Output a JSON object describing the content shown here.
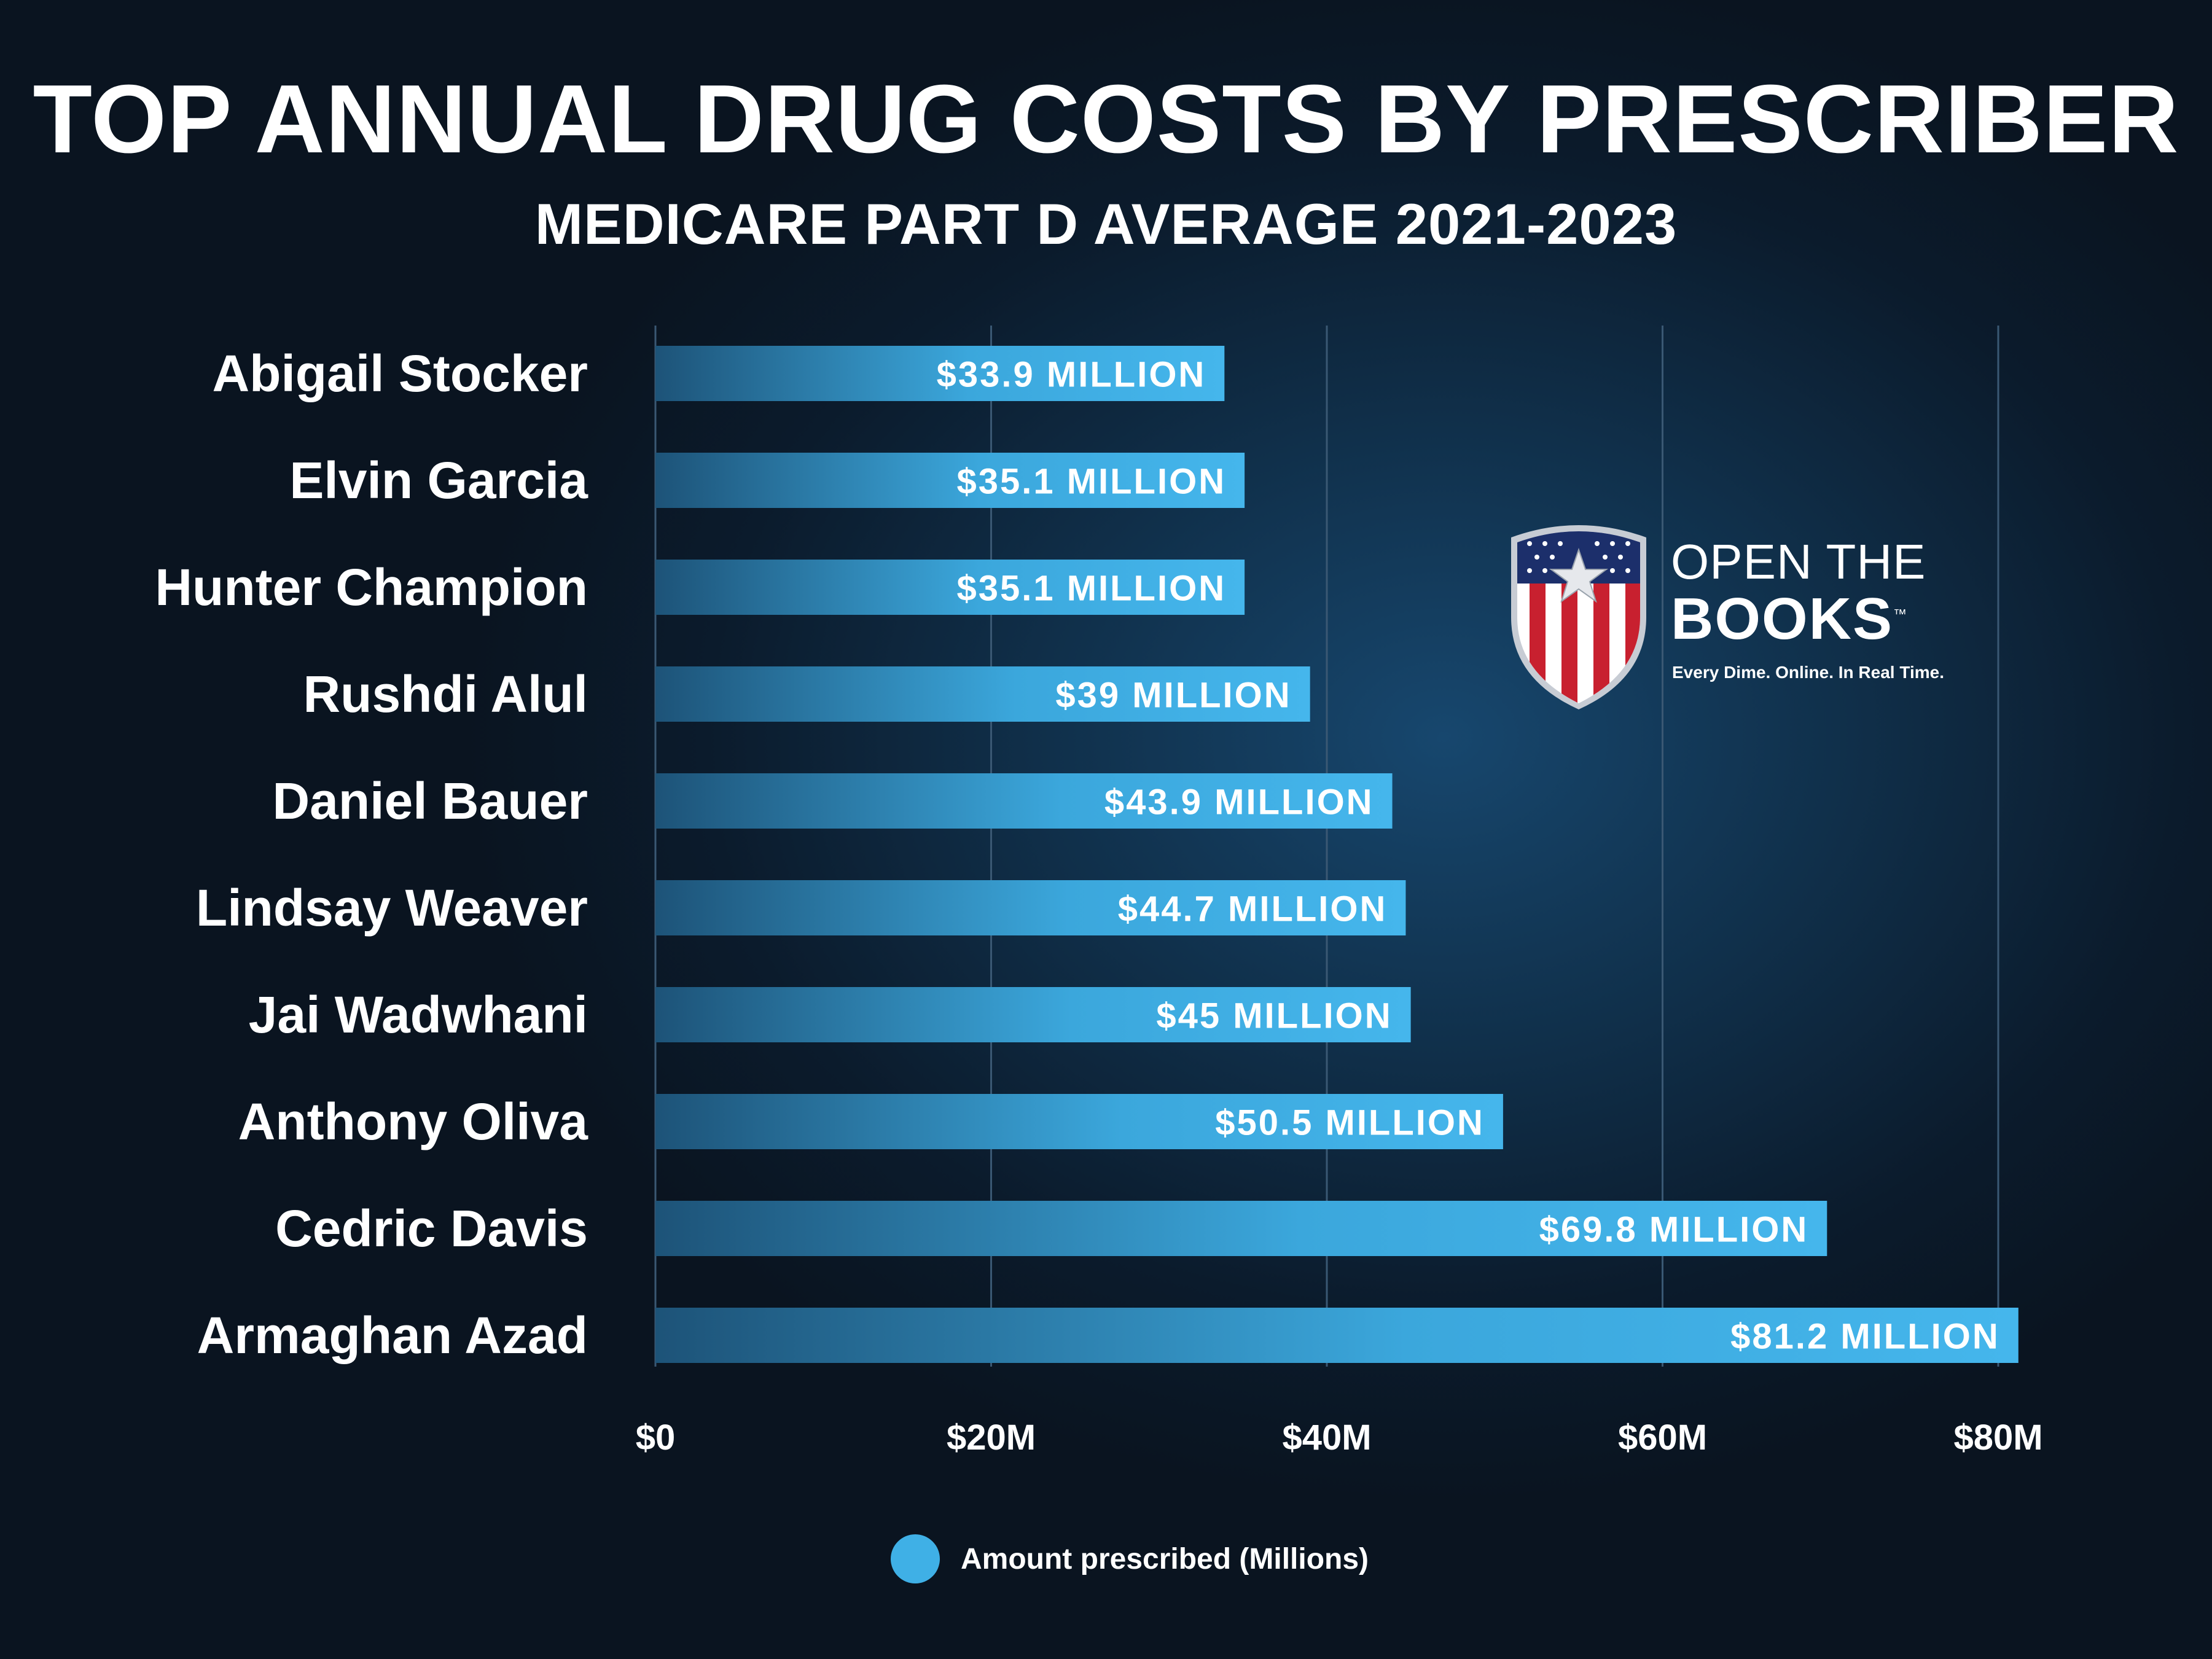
{
  "header": {
    "title": "TOP ANNUAL DRUG COSTS BY PRESCRIBER",
    "subtitle": "MEDICARE PART D AVERAGE 2021-2023"
  },
  "logo": {
    "line1": "OPEN THE",
    "line2": "BOOKS",
    "trademark": "™",
    "tagline": "Every Dime. Online. In Real Time.",
    "colors": {
      "red": "#c8202f",
      "navy": "#1c2f6b",
      "white": "#ffffff"
    }
  },
  "colors": {
    "bar_light": "#43b4ea",
    "bar_dark": "#1d5378",
    "grid": "#3a5873",
    "legend_dot": "#3fb0e6"
  },
  "chart_data": {
    "type": "bar",
    "orientation": "horizontal",
    "title": "TOP ANNUAL DRUG COSTS BY PRESCRIBER",
    "subtitle": "MEDICARE PART D AVERAGE 2021-2023",
    "categories": [
      "Abigail Stocker",
      "Elvin Garcia",
      "Hunter Champion",
      "Rushdi Alul",
      "Daniel Bauer",
      "Lindsay Weaver",
      "Jai Wadwhani",
      "Anthony Oliva",
      "Cedric Davis",
      "Armaghan Azad"
    ],
    "values": [
      33.9,
      35.1,
      35.1,
      39,
      43.9,
      44.7,
      45,
      50.5,
      69.8,
      81.2
    ],
    "data_labels": [
      "$33.9 MILLION",
      "$35.1 MILLION",
      "$35.1 MILLION",
      "$39 MILLION",
      "$43.9 MILLION",
      "$44.7 MILLION",
      "$45 MILLION",
      "$50.5 MILLION",
      "$69.8 MILLION",
      "$81.2 MILLION"
    ],
    "xlim": [
      0,
      80
    ],
    "xticks": [
      0,
      20,
      40,
      60,
      80
    ],
    "xtick_labels": [
      "$0",
      "$20M",
      "$40M",
      "$60M",
      "$80M"
    ],
    "xlabel": "",
    "ylabel": "",
    "grid": true,
    "legend": {
      "label": "Amount prescribed (Millions)",
      "position": "bottom-center"
    }
  }
}
